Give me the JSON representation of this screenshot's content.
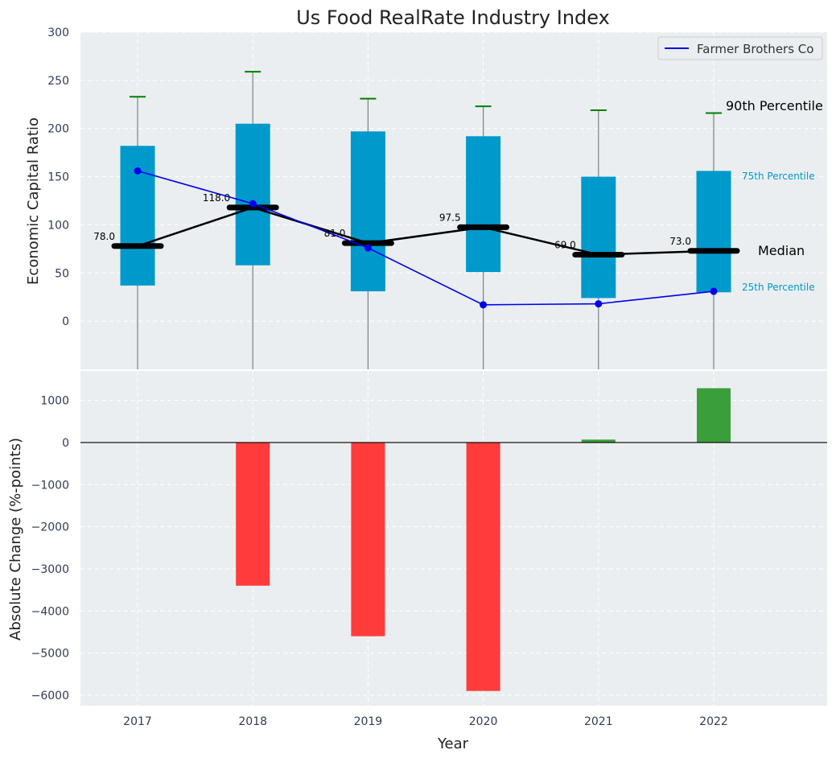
{
  "chart_data": [
    {
      "type": "box-range",
      "title": "Us Food RealRate Industry Index",
      "ylabel": "Economic Capital Ratio",
      "ylim": [
        -50,
        300
      ],
      "yticks": [
        0,
        50,
        100,
        150,
        200,
        250,
        300
      ],
      "categories": [
        "2017",
        "2018",
        "2019",
        "2020",
        "2021",
        "2022"
      ],
      "grid": true,
      "legend": {
        "position": "top-right",
        "entries": [
          "Farmer Brothers Co"
        ]
      },
      "percentile_25": [
        37,
        58,
        31,
        51,
        24,
        30
      ],
      "percentile_75": [
        182,
        205,
        197,
        192,
        150,
        156
      ],
      "percentile_90": [
        233,
        259,
        231,
        223,
        219,
        216
      ],
      "median": [
        78.0,
        118.0,
        81.0,
        97.5,
        69.0,
        73.0
      ],
      "median_labels": [
        "78.0",
        "118.0",
        "81.0",
        "97.5",
        "69.0",
        "73.0"
      ],
      "series": [
        {
          "name": "Farmer Brothers Co",
          "values": [
            156,
            122,
            76,
            17,
            18,
            31
          ]
        }
      ],
      "annotations": {
        "p90": "90th Percentile",
        "p75": "75th Percentile",
        "median": "Median",
        "p25": "25th Percentile"
      },
      "colors": {
        "box": "#0099cc",
        "median": "#000000",
        "company": "#0000ee",
        "cap": "#008000",
        "whisker": "#808080",
        "background": "#eaeef0"
      }
    },
    {
      "type": "bar",
      "ylabel": "Absolute Change (%-points)",
      "xlabel": "Year",
      "ylim": [
        -6250,
        1700
      ],
      "yticks": [
        -6000,
        -5000,
        -4000,
        -3000,
        -2000,
        -1000,
        0,
        1000
      ],
      "ytick_labels": [
        "−6000",
        "−5000",
        "−4000",
        "−3000",
        "−2000",
        "−1000",
        "0",
        "1000"
      ],
      "categories": [
        "2017",
        "2018",
        "2019",
        "2020",
        "2021",
        "2022"
      ],
      "values": [
        0,
        -3400,
        -4600,
        -5900,
        70,
        1290
      ],
      "grid": true,
      "colors": {
        "positive": "#3a9e3a",
        "negative": "#ff3b3b"
      }
    }
  ]
}
